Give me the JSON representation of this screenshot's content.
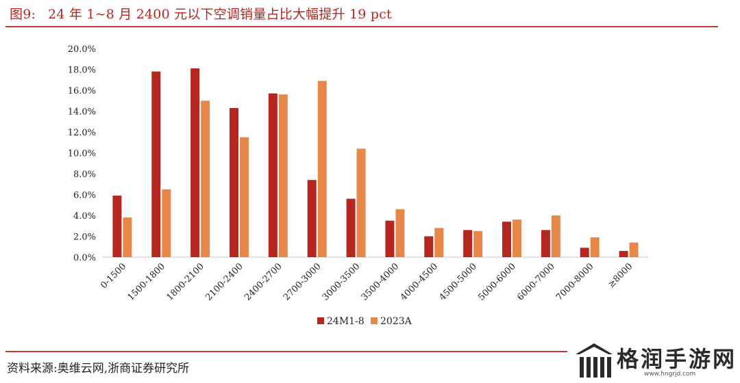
{
  "header": {
    "figure_label": "图9:",
    "title": "24 年 1~8 月 2400 元以下空调销量占比大幅提升 19 pct"
  },
  "footer": {
    "source": "资料来源:奥维云网,浙商证券研究所"
  },
  "watermark": {
    "brand": "格润手游网",
    "url": "www.hngrjd.com"
  },
  "colors": {
    "series1": "#b5261e",
    "series2": "#e8874a",
    "accent": "#c23a2e"
  },
  "chart_data": {
    "type": "bar",
    "title": "24 年 1~8 月 2400 元以下空调销量占比大幅提升 19 pct",
    "xlabel": "",
    "ylabel": "",
    "ylim": [
      0,
      20
    ],
    "yticks": [
      "0.0%",
      "2.0%",
      "4.0%",
      "6.0%",
      "8.0%",
      "10.0%",
      "12.0%",
      "14.0%",
      "16.0%",
      "18.0%",
      "20.0%"
    ],
    "categories": [
      "0-1500",
      "1500-1800",
      "1800-2100",
      "2100-2400",
      "2400-2700",
      "2700-3000",
      "3000-3500",
      "3500-4000",
      "4000-4500",
      "4500-5000",
      "5000-6000",
      "6000-7000",
      "7000-8000",
      "≥8000"
    ],
    "series": [
      {
        "name": "24M1-8",
        "values": [
          5.9,
          17.8,
          18.1,
          14.3,
          15.7,
          7.4,
          5.6,
          3.5,
          2.0,
          2.6,
          3.4,
          2.6,
          0.9,
          0.6
        ]
      },
      {
        "name": "2023A",
        "values": [
          3.8,
          6.5,
          15.0,
          11.5,
          15.6,
          16.9,
          10.4,
          4.6,
          2.8,
          2.5,
          3.6,
          4.0,
          1.9,
          1.4
        ]
      }
    ],
    "legend": "bottom-center",
    "grid": false
  }
}
